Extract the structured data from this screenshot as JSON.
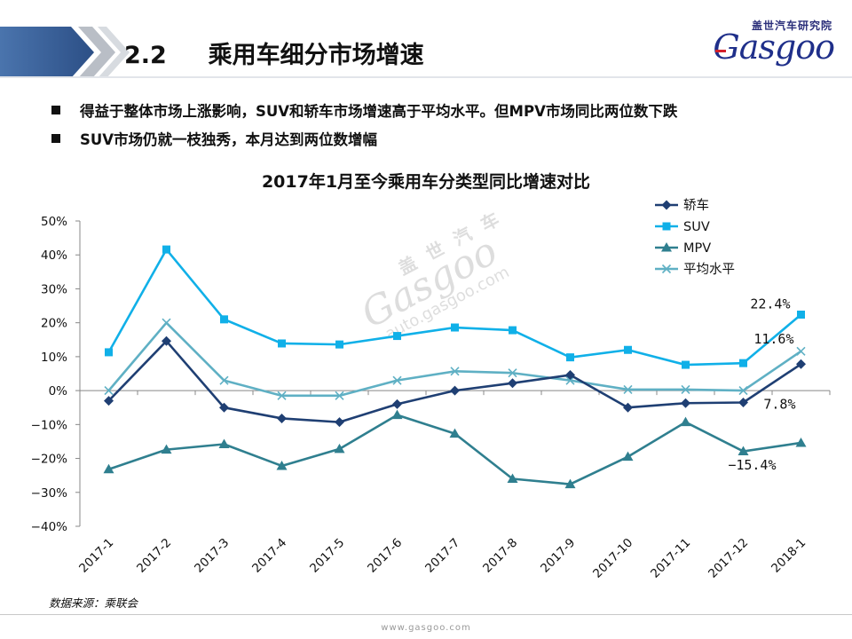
{
  "header": {
    "section_number": "2.2",
    "section_title": "乘用车细分市场增速",
    "logo_cn": "盖世汽车研究院",
    "logo_word": "Gasgoo"
  },
  "bullets": [
    "得益于整体市场上涨影响，SUV和轿车市场增速高于平均水平。但MPV市场同比两位数下跌",
    "SUV市场仍就一枝独秀，本月达到两位数增幅"
  ],
  "watermark": {
    "cn": "盖 世 汽 车",
    "en": "Gasgoo",
    "url": "auto.gasgoo.com"
  },
  "source": "数据来源：乘联会",
  "footer_url": "www.gasgoo.com",
  "colors": {
    "sedan": "#1f3f73",
    "suv": "#10b0e8",
    "mpv": "#2f7f8f",
    "avg": "#5fb0c4"
  },
  "chart_data": {
    "type": "line",
    "title": "2017年1月至今乘用车分类型同比增速对比",
    "categories": [
      "2017-1",
      "2017-2",
      "2017-3",
      "2017-4",
      "2017-5",
      "2017-6",
      "2017-7",
      "2017-8",
      "2017-9",
      "2017-10",
      "2017-11",
      "2017-12",
      "2018-1"
    ],
    "yticks": [
      "50%",
      "40%",
      "30%",
      "20%",
      "10%",
      "0%",
      "−10%",
      "−20%",
      "−30%",
      "−40%"
    ],
    "ylim": [
      -40,
      50
    ],
    "legend_position": "top-right",
    "grid": false,
    "series": [
      {
        "key": "sedan",
        "name": "轿车",
        "marker": "diamond",
        "values": [
          -3.0,
          14.6,
          -5.0,
          -8.2,
          -9.3,
          -4.0,
          0.0,
          2.2,
          4.6,
          -5.0,
          -3.7,
          -3.5,
          7.8
        ]
      },
      {
        "key": "suv",
        "name": "SUV",
        "marker": "square",
        "values": [
          11.3,
          41.6,
          21.0,
          13.9,
          13.6,
          16.1,
          18.6,
          17.8,
          9.8,
          12.0,
          7.6,
          8.1,
          22.4
        ]
      },
      {
        "key": "mpv",
        "name": "MPV",
        "marker": "triangle",
        "values": [
          -23.2,
          -17.4,
          -15.8,
          -22.2,
          -17.2,
          -7.2,
          -12.7,
          -26.0,
          -27.6,
          -19.5,
          -9.3,
          -17.9,
          -15.4
        ]
      },
      {
        "key": "avg",
        "name": "平均水平",
        "marker": "x",
        "values": [
          0.0,
          20.0,
          3.0,
          -1.5,
          -1.5,
          3.0,
          5.7,
          5.2,
          3.0,
          0.3,
          0.3,
          0.0,
          11.6
        ]
      }
    ],
    "data_labels": [
      {
        "series": "suv",
        "text": "22.4%"
      },
      {
        "series": "avg",
        "text": "11.6%"
      },
      {
        "series": "sedan",
        "text": "7.8%"
      },
      {
        "series": "mpv",
        "text": "−15.4%"
      }
    ]
  }
}
